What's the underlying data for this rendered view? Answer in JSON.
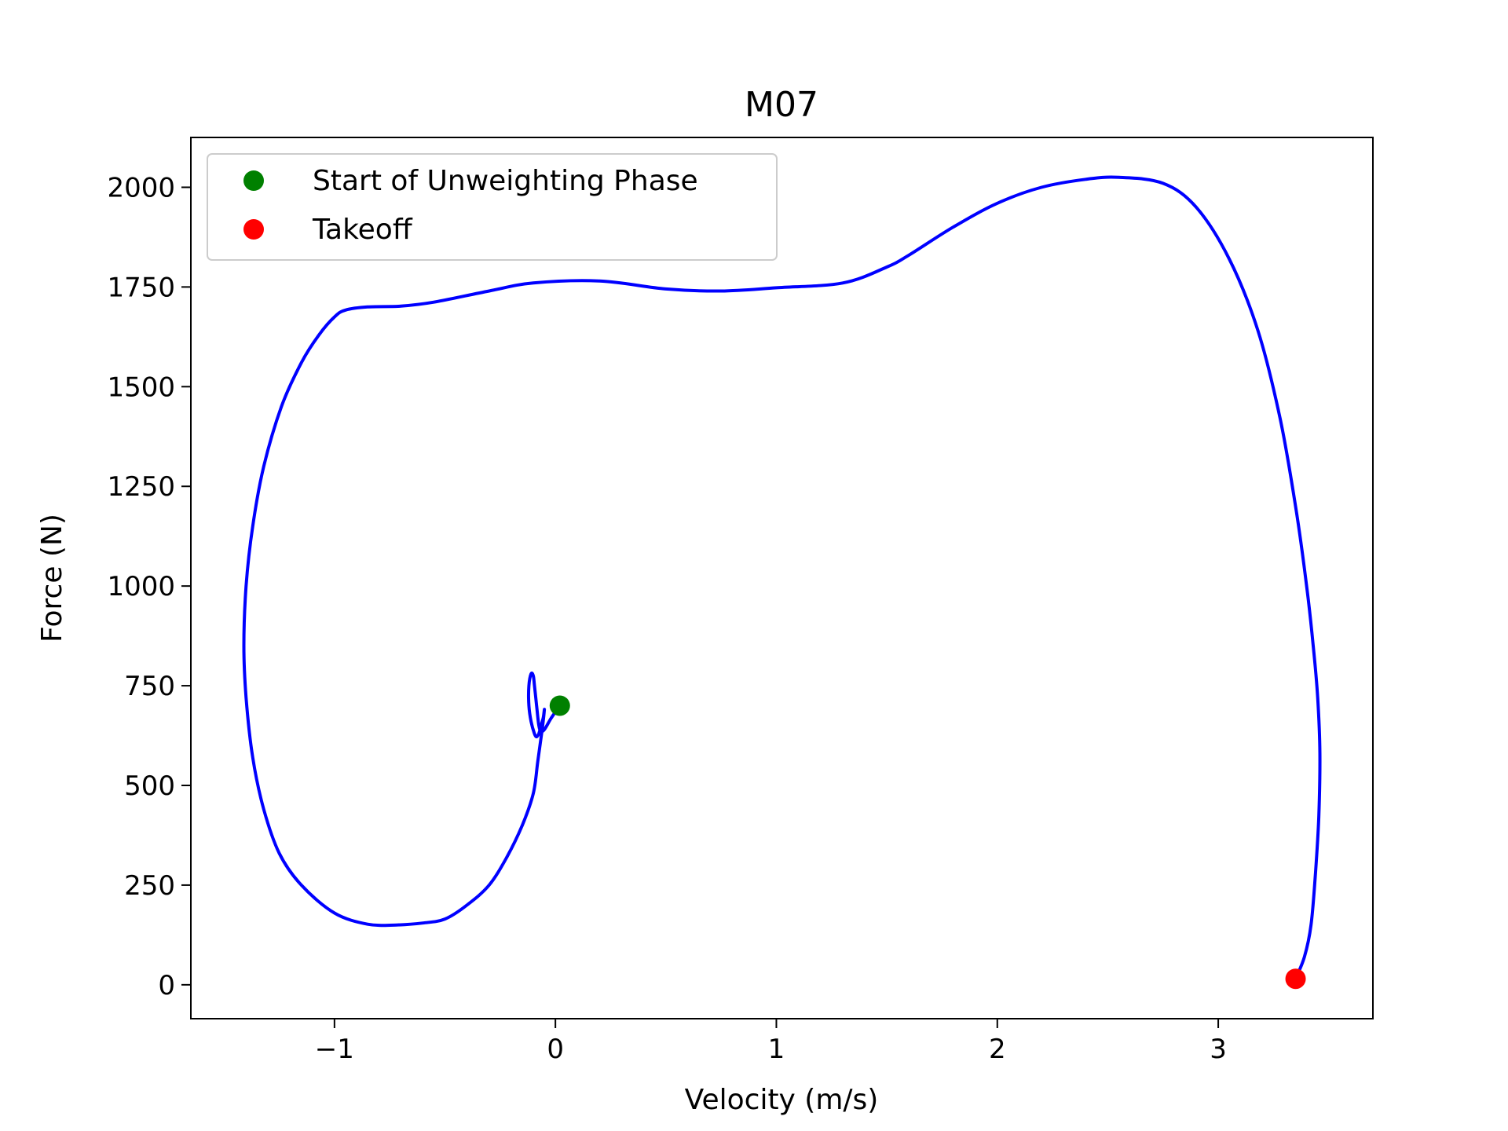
{
  "chart_data": {
    "type": "line",
    "title": "M07",
    "xlabel": "Velocity (m/s)",
    "ylabel": "Force (N)",
    "xlim": [
      -1.65,
      3.7
    ],
    "ylim": [
      -85,
      2125
    ],
    "x_ticks": [
      -1,
      0,
      1,
      2,
      3
    ],
    "x_tick_labels": [
      "−1",
      "0",
      "1",
      "2",
      "3"
    ],
    "y_ticks": [
      0,
      250,
      500,
      750,
      1000,
      1250,
      1500,
      1750,
      2000
    ],
    "y_tick_labels": [
      "0",
      "250",
      "500",
      "750",
      "1000",
      "1250",
      "1500",
      "1750",
      "2000"
    ],
    "grid": false,
    "legend_position": "top-left",
    "series": [
      {
        "color": "#0000ff",
        "x": [
          0.02,
          -0.02,
          -0.05,
          -0.065,
          -0.075,
          -0.085,
          -0.095,
          -0.1,
          -0.11,
          -0.12,
          -0.12,
          -0.11,
          -0.095,
          -0.085,
          -0.075,
          -0.065,
          -0.055,
          -0.05,
          -0.06,
          -0.08,
          -0.1,
          -0.15,
          -0.22,
          -0.3,
          -0.4,
          -0.5,
          -0.6,
          -0.72,
          -0.85,
          -1.0,
          -1.15,
          -1.25,
          -1.32,
          -1.37,
          -1.4,
          -1.41,
          -1.4,
          -1.37,
          -1.32,
          -1.24,
          -1.15,
          -1.07,
          -1.0,
          -0.95,
          -0.85,
          -0.7,
          -0.55,
          -0.3,
          -0.1,
          0.2,
          0.5,
          0.75,
          1.0,
          1.3,
          1.5,
          1.6,
          1.8,
          2.0,
          2.2,
          2.4,
          2.55,
          2.75,
          2.9,
          3.05,
          3.18,
          3.28,
          3.35,
          3.4,
          3.43,
          3.45,
          3.46,
          3.455,
          3.44,
          3.42,
          3.39,
          3.35
        ],
        "y": [
          700,
          668,
          640,
          636,
          650,
          700,
          752,
          775,
          780,
          750,
          700,
          660,
          630,
          622,
          630,
          650,
          670,
          690,
          640,
          560,
          480,
          400,
          320,
          250,
          200,
          165,
          155,
          150,
          152,
          180,
          250,
          330,
          440,
          570,
          720,
          850,
          1000,
          1150,
          1300,
          1450,
          1560,
          1630,
          1675,
          1692,
          1700,
          1702,
          1712,
          1740,
          1760,
          1765,
          1745,
          1740,
          1748,
          1760,
          1800,
          1830,
          1900,
          1960,
          2000,
          2020,
          2025,
          2010,
          1950,
          1820,
          1640,
          1420,
          1200,
          1000,
          850,
          720,
          580,
          420,
          280,
          150,
          70,
          15
        ]
      }
    ],
    "markers": [
      {
        "name": "Start of Unweighting Phase",
        "x": 0.02,
        "y": 700,
        "color": "#008000"
      },
      {
        "name": "Takeoff",
        "x": 3.35,
        "y": 15,
        "color": "#ff0000"
      }
    ]
  }
}
